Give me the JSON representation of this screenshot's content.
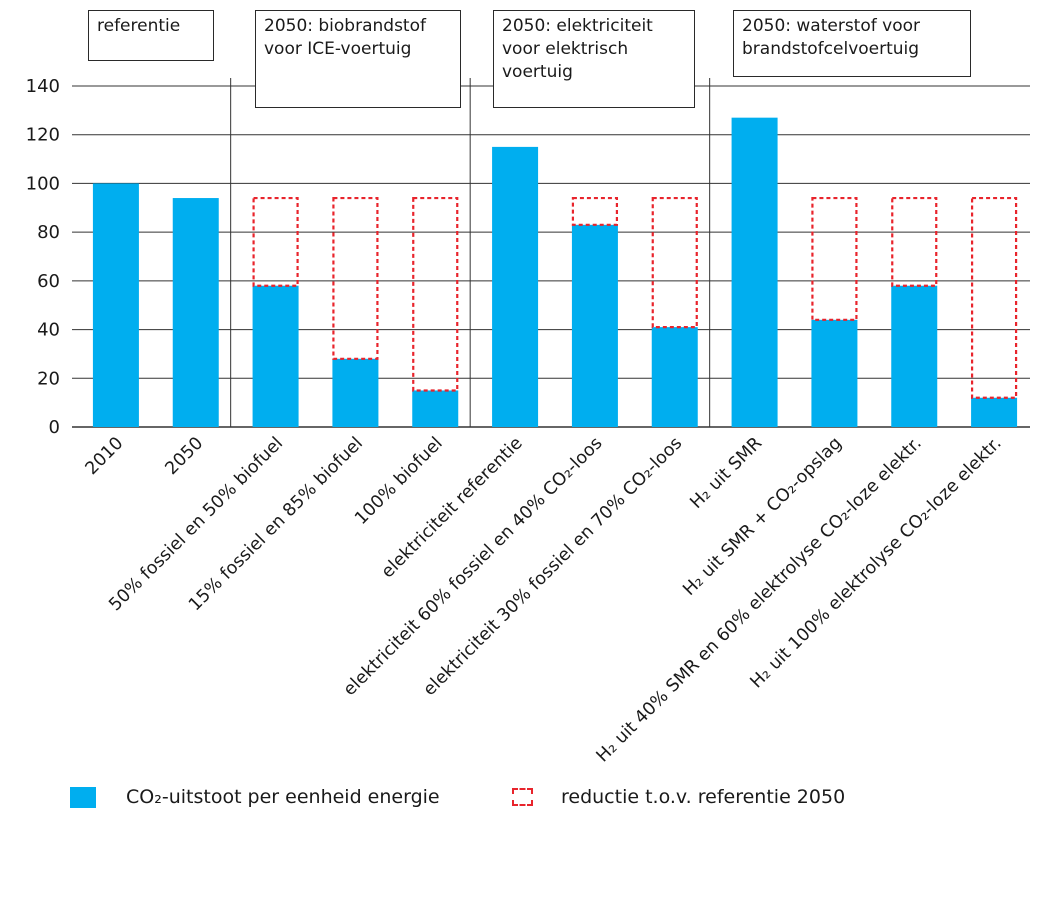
{
  "chart_data": {
    "type": "bar",
    "title": "",
    "xlabel": "",
    "ylabel": "",
    "ylim": [
      0,
      140
    ],
    "yticks": [
      "0",
      "20",
      "40",
      "60",
      "80",
      "100",
      "120",
      "140"
    ],
    "grid": true,
    "colors": {
      "bar": "#00aeef",
      "reduction": "#e8242c",
      "grid": "#333333"
    },
    "reference_2050": 94,
    "groups": [
      {
        "label": "referentie"
      },
      {
        "label": "2050: biobrandstof\nvoor ICE-voertuig"
      },
      {
        "label": "2050: elektriciteit\nvoor elektrisch\nvoertuig"
      },
      {
        "label": "2050: waterstof voor\nbrandstofcelvoertuig"
      }
    ],
    "categories": [
      "2010",
      "2050",
      "50% fossiel en 50% biofuel",
      "15% fossiel en 85% biofuel",
      "100% biofuel",
      "elektriciteit referentie",
      "elektriciteit 60% fossiel en 40% CO₂-loos",
      "elektriciteit 30% fossiel en 70% CO₂-loos",
      "H₂ uit SMR",
      "H₂ uit SMR + CO₂-opslag",
      "H₂ uit 40% SMR en 60% elektrolyse CO₂-loze elektr.",
      "H₂ uit 100% elektrolyse CO₂-loze elektr."
    ],
    "series": [
      {
        "name": "CO₂-uitstoot per eenheid energie",
        "values": [
          100,
          94,
          58,
          28,
          15,
          115,
          83,
          41,
          127,
          44,
          58,
          12
        ]
      },
      {
        "name": "reductie t.o.v. referentie 2050",
        "values": [
          null,
          null,
          36,
          66,
          79,
          null,
          11,
          53,
          null,
          50,
          36,
          82
        ]
      }
    ],
    "legend": {
      "position": "bottom-left"
    }
  }
}
